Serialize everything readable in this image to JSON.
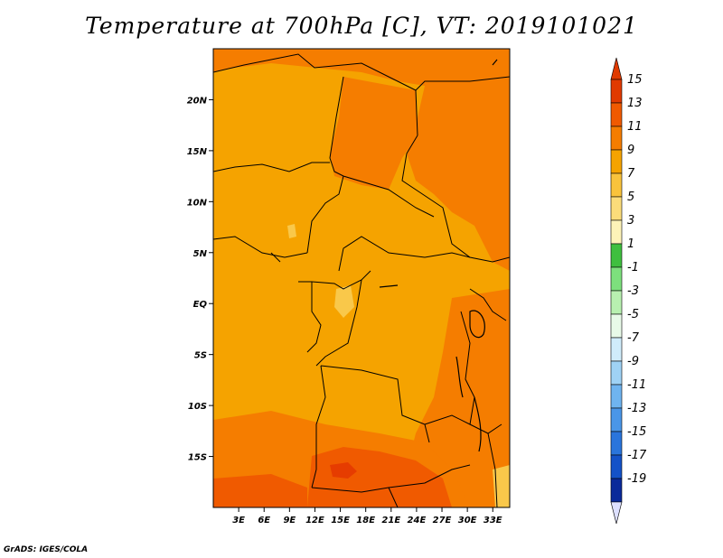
{
  "title": "Temperature at 700hPa [C], VT: 2019101021",
  "credit": "GrADS: IGES/COLA",
  "map": {
    "lon_range": [
      0,
      35
    ],
    "lat_range": [
      -20,
      25
    ],
    "lat_ticks": [
      {
        "value": 20,
        "label": "20N"
      },
      {
        "value": 15,
        "label": "15N"
      },
      {
        "value": 10,
        "label": "10N"
      },
      {
        "value": 5,
        "label": "5N"
      },
      {
        "value": 0,
        "label": "EQ"
      },
      {
        "value": -5,
        "label": "5S"
      },
      {
        "value": -10,
        "label": "10S"
      },
      {
        "value": -15,
        "label": "15S"
      }
    ],
    "lon_ticks": [
      {
        "value": 3,
        "label": "3E"
      },
      {
        "value": 6,
        "label": "6E"
      },
      {
        "value": 9,
        "label": "9E"
      },
      {
        "value": 12,
        "label": "12E"
      },
      {
        "value": 15,
        "label": "15E"
      },
      {
        "value": 18,
        "label": "18E"
      },
      {
        "value": 21,
        "label": "21E"
      },
      {
        "value": 24,
        "label": "24E"
      },
      {
        "value": 27,
        "label": "27E"
      },
      {
        "value": 30,
        "label": "30E"
      },
      {
        "value": 33,
        "label": "33E"
      }
    ],
    "colors": {
      "base": "#f5a300",
      "warm": "#f57d00",
      "hot": "#f05a00",
      "hottest": "#e63c00",
      "light": "#f9c84a",
      "border": "#000000"
    }
  },
  "colorbar": {
    "levels": [
      "15",
      "13",
      "11",
      "9",
      "7",
      "5",
      "3",
      "1",
      "-1",
      "-3",
      "-5",
      "-7",
      "-9",
      "-11",
      "-13",
      "-15",
      "-17",
      "-19"
    ],
    "colors": [
      "#e03a00",
      "#f05a00",
      "#f57d00",
      "#f5a300",
      "#f9c33c",
      "#fbdc7a",
      "#fdf3b8",
      "#3fbf3f",
      "#7de07d",
      "#b8f0b0",
      "#e8fae8",
      "#d0ecfb",
      "#9fd2f5",
      "#6fb4ef",
      "#4a96e8",
      "#2a75dc",
      "#1452c8",
      "#0a2a9a",
      "#00106a"
    ],
    "top_triangle_color": "#e03a00",
    "bottom_triangle_color": "#dde0ff"
  }
}
